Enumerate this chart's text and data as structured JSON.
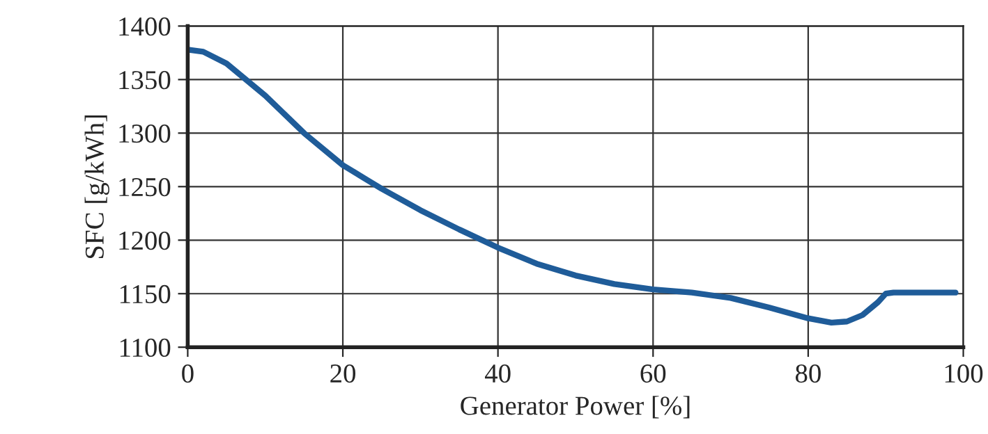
{
  "chart_data": {
    "type": "line",
    "xlabel": "Generator Power [%]",
    "ylabel": "SFC [g/kWh]",
    "x": [
      0,
      2,
      5,
      10,
      15,
      20,
      25,
      30,
      35,
      40,
      45,
      50,
      55,
      60,
      65,
      70,
      75,
      80,
      83,
      85,
      87,
      89,
      90,
      91,
      95,
      99
    ],
    "series": [
      {
        "color": "#1f5c99",
        "values": [
          1378,
          1376,
          1365,
          1335,
          1300,
          1270,
          1248,
          1228,
          1210,
          1193,
          1178,
          1167,
          1159,
          1154,
          1151,
          1146,
          1137,
          1127,
          1123,
          1124,
          1130,
          1142,
          1150,
          1151,
          1151,
          1151
        ]
      }
    ],
    "xlim": [
      0,
      100
    ],
    "xticks": [
      0,
      20,
      40,
      60,
      80,
      100
    ],
    "ylim": [
      1100,
      1400
    ],
    "yticks": [
      1100,
      1150,
      1200,
      1250,
      1300,
      1350,
      1400
    ],
    "grid": true,
    "line_style": "solid",
    "marker": "none"
  }
}
